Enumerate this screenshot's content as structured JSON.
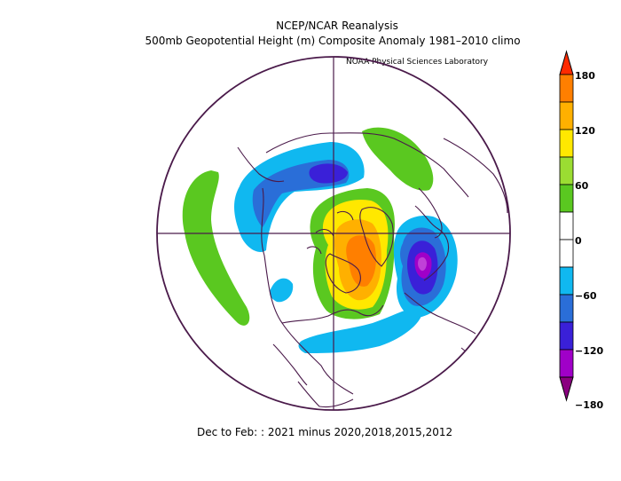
{
  "header": {
    "title": "NCEP/NCAR Reanalysis",
    "subtitle": "500mb Geopotential Height (m) Composite Anomaly 1981–2010 climo",
    "credit": "NOAA Physical Sciences Laboratory"
  },
  "footer": {
    "period": "Dec to Feb: : 2021 minus 2020,2018,2015,2012"
  },
  "colorbar": {
    "labels": [
      "180",
      "120",
      "60",
      "0",
      "−60",
      "−120",
      "−180"
    ],
    "colors": [
      "#ff2a00",
      "#ff7f00",
      "#ffb000",
      "#ffe800",
      "#9bdd32",
      "#5ac820",
      "#ffffff",
      "#ffffff",
      "#10b8f0",
      "#2a6ed8",
      "#3a20d8",
      "#a000c8",
      "#8a0080"
    ]
  },
  "colors": {
    "map_outline": "#4a1a4a"
  }
}
